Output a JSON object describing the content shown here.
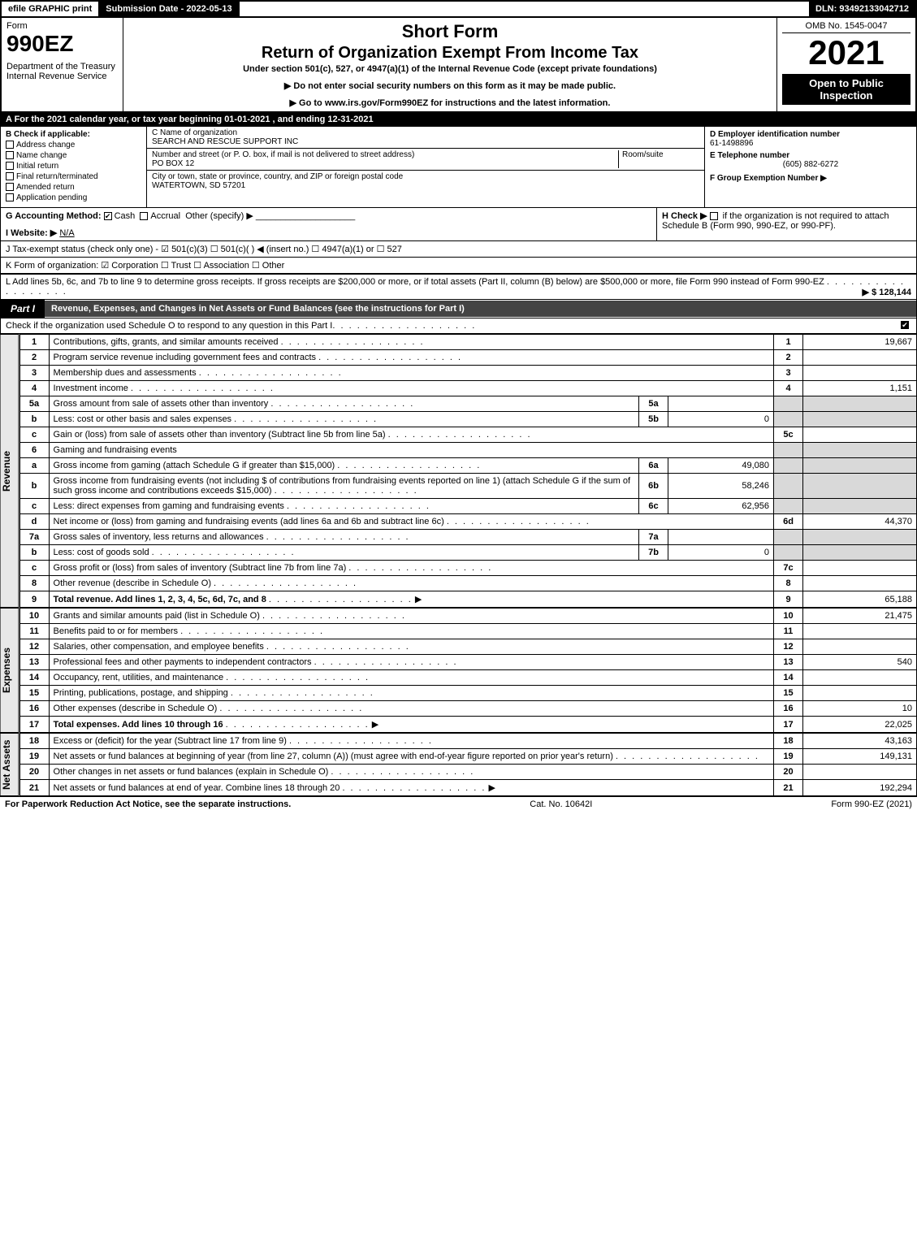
{
  "topbar": {
    "efile": "efile GRAPHIC print",
    "submission": "Submission Date - 2022-05-13",
    "dln": "DLN: 93492133042712"
  },
  "header": {
    "form_label": "Form",
    "form_num": "990EZ",
    "dept": "Department of the Treasury\nInternal Revenue Service",
    "short": "Short Form",
    "title": "Return of Organization Exempt From Income Tax",
    "sub": "Under section 501(c), 527, or 4947(a)(1) of the Internal Revenue Code (except private foundations)",
    "note1": "▶ Do not enter social security numbers on this form as it may be made public.",
    "note2": "▶ Go to www.irs.gov/Form990EZ for instructions and the latest information.",
    "omb": "OMB No. 1545-0047",
    "year": "2021",
    "inspect": "Open to Public Inspection"
  },
  "row_a": "A  For the 2021 calendar year, or tax year beginning 01-01-2021 , and ending 12-31-2021",
  "col_b": {
    "title": "B  Check if applicable:",
    "items": [
      "Address change",
      "Name change",
      "Initial return",
      "Final return/terminated",
      "Amended return",
      "Application pending"
    ]
  },
  "col_c": {
    "name_lbl": "C Name of organization",
    "name_val": "SEARCH AND RESCUE SUPPORT INC",
    "street_lbl": "Number and street (or P. O. box, if mail is not delivered to street address)",
    "street_val": "PO BOX 12",
    "room_lbl": "Room/suite",
    "city_lbl": "City or town, state or province, country, and ZIP or foreign postal code",
    "city_val": "WATERTOWN, SD  57201"
  },
  "col_d": {
    "ein_lbl": "D Employer identification number",
    "ein_val": "61-1498896",
    "tel_lbl": "E Telephone number",
    "tel_val": "(605) 882-6272",
    "grp_lbl": "F Group Exemption Number  ▶"
  },
  "g": {
    "lbl": "G Accounting Method:",
    "cash": "Cash",
    "accrual": "Accrual",
    "other": "Other (specify) ▶"
  },
  "h": {
    "lbl": "H  Check ▶",
    "txt": "if the organization is not required to attach Schedule B (Form 990, 990-EZ, or 990-PF)."
  },
  "i": {
    "lbl": "I Website: ▶",
    "val": "N/A"
  },
  "j": "J Tax-exempt status (check only one) - ☑ 501(c)(3)  ☐ 501(c)(  ) ◀ (insert no.)  ☐ 4947(a)(1) or  ☐ 527",
  "k": "K Form of organization:  ☑ Corporation  ☐ Trust  ☐ Association  ☐ Other",
  "l": {
    "txt": "L Add lines 5b, 6c, and 7b to line 9 to determine gross receipts. If gross receipts are $200,000 or more, or if total assets (Part II, column (B) below) are $500,000 or more, file Form 990 instead of Form 990-EZ",
    "val": "▶ $ 128,144"
  },
  "part1": {
    "badge": "Part I",
    "title": "Revenue, Expenses, and Changes in Net Assets or Fund Balances (see the instructions for Part I)",
    "check_line": "Check if the organization used Schedule O to respond to any question in this Part I"
  },
  "labels": {
    "revenue": "Revenue",
    "expenses": "Expenses",
    "netassets": "Net Assets"
  },
  "lines": [
    {
      "n": "1",
      "d": "Contributions, gifts, grants, and similar amounts received",
      "r": "1",
      "v": "19,667"
    },
    {
      "n": "2",
      "d": "Program service revenue including government fees and contracts",
      "r": "2",
      "v": ""
    },
    {
      "n": "3",
      "d": "Membership dues and assessments",
      "r": "3",
      "v": ""
    },
    {
      "n": "4",
      "d": "Investment income",
      "r": "4",
      "v": "1,151"
    },
    {
      "n": "5a",
      "d": "Gross amount from sale of assets other than inventory",
      "mid": "5a",
      "mv": "",
      "shade": true
    },
    {
      "n": "b",
      "d": "Less: cost or other basis and sales expenses",
      "mid": "5b",
      "mv": "0",
      "shade": true
    },
    {
      "n": "c",
      "d": "Gain or (loss) from sale of assets other than inventory (Subtract line 5b from line 5a)",
      "r": "5c",
      "v": ""
    },
    {
      "n": "6",
      "d": "Gaming and fundraising events",
      "shade": true,
      "full": true
    },
    {
      "n": "a",
      "d": "Gross income from gaming (attach Schedule G if greater than $15,000)",
      "mid": "6a",
      "mv": "49,080",
      "shade": true
    },
    {
      "n": "b",
      "d": "Gross income from fundraising events (not including $                   of contributions from fundraising events reported on line 1) (attach Schedule G if the sum of such gross income and contributions exceeds $15,000)",
      "mid": "6b",
      "mv": "58,246",
      "shade": true
    },
    {
      "n": "c",
      "d": "Less: direct expenses from gaming and fundraising events",
      "mid": "6c",
      "mv": "62,956",
      "shade": true
    },
    {
      "n": "d",
      "d": "Net income or (loss) from gaming and fundraising events (add lines 6a and 6b and subtract line 6c)",
      "r": "6d",
      "v": "44,370"
    },
    {
      "n": "7a",
      "d": "Gross sales of inventory, less returns and allowances",
      "mid": "7a",
      "mv": "",
      "shade": true
    },
    {
      "n": "b",
      "d": "Less: cost of goods sold",
      "mid": "7b",
      "mv": "0",
      "shade": true
    },
    {
      "n": "c",
      "d": "Gross profit or (loss) from sales of inventory (Subtract line 7b from line 7a)",
      "r": "7c",
      "v": ""
    },
    {
      "n": "8",
      "d": "Other revenue (describe in Schedule O)",
      "r": "8",
      "v": ""
    },
    {
      "n": "9",
      "d": "Total revenue. Add lines 1, 2, 3, 4, 5c, 6d, 7c, and 8",
      "r": "9",
      "v": "65,188",
      "bold": true,
      "arrow": true
    }
  ],
  "exp_lines": [
    {
      "n": "10",
      "d": "Grants and similar amounts paid (list in Schedule O)",
      "r": "10",
      "v": "21,475"
    },
    {
      "n": "11",
      "d": "Benefits paid to or for members",
      "r": "11",
      "v": ""
    },
    {
      "n": "12",
      "d": "Salaries, other compensation, and employee benefits",
      "r": "12",
      "v": ""
    },
    {
      "n": "13",
      "d": "Professional fees and other payments to independent contractors",
      "r": "13",
      "v": "540"
    },
    {
      "n": "14",
      "d": "Occupancy, rent, utilities, and maintenance",
      "r": "14",
      "v": ""
    },
    {
      "n": "15",
      "d": "Printing, publications, postage, and shipping",
      "r": "15",
      "v": ""
    },
    {
      "n": "16",
      "d": "Other expenses (describe in Schedule O)",
      "r": "16",
      "v": "10"
    },
    {
      "n": "17",
      "d": "Total expenses. Add lines 10 through 16",
      "r": "17",
      "v": "22,025",
      "bold": true,
      "arrow": true
    }
  ],
  "na_lines": [
    {
      "n": "18",
      "d": "Excess or (deficit) for the year (Subtract line 17 from line 9)",
      "r": "18",
      "v": "43,163"
    },
    {
      "n": "19",
      "d": "Net assets or fund balances at beginning of year (from line 27, column (A)) (must agree with end-of-year figure reported on prior year's return)",
      "r": "19",
      "v": "149,131"
    },
    {
      "n": "20",
      "d": "Other changes in net assets or fund balances (explain in Schedule O)",
      "r": "20",
      "v": ""
    },
    {
      "n": "21",
      "d": "Net assets or fund balances at end of year. Combine lines 18 through 20",
      "r": "21",
      "v": "192,294",
      "arrow": true
    }
  ],
  "footer": {
    "left": "For Paperwork Reduction Act Notice, see the separate instructions.",
    "mid": "Cat. No. 10642I",
    "right": "Form 990-EZ (2021)"
  }
}
